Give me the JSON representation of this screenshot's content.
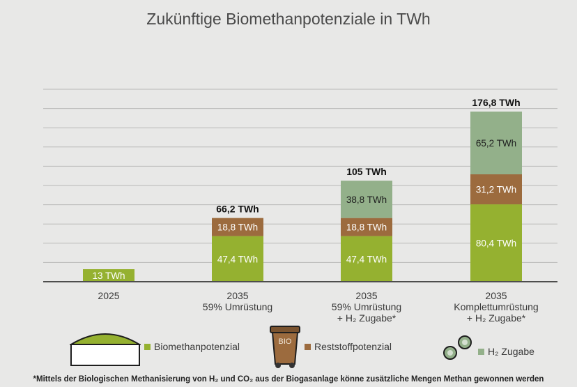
{
  "title": "Zukünftige Biomethanpotenziale in TWh",
  "chart_data": {
    "type": "bar",
    "stacked": true,
    "categories": [
      {
        "line1": "2025",
        "line2": "",
        "line3": ""
      },
      {
        "line1": "2035",
        "line2": "59% Umrüstung",
        "line3": ""
      },
      {
        "line1": "2035",
        "line2": "59% Umrüstung",
        "line3": "+ H₂ Zugabe*"
      },
      {
        "line1": "2035",
        "line2": "Komplettumrüstung",
        "line3": "+ H₂ Zugabe*"
      }
    ],
    "series": [
      {
        "name": "Biomethanpotenzial",
        "color": "#95b130",
        "values": [
          13,
          47.4,
          47.4,
          80.4
        ],
        "labels": [
          "13 TWh",
          "47,4 TWh",
          "47,4 TWh",
          "80,4 TWh"
        ]
      },
      {
        "name": "Reststoffpotenzial",
        "color": "#9c6b3e",
        "values": [
          0,
          18.8,
          18.8,
          31.2
        ],
        "labels": [
          "",
          "18,8 TWh",
          "18,8 TWh",
          "31,2 TWh"
        ]
      },
      {
        "name": "H₂ Zugabe",
        "color": "#93b08a",
        "values": [
          0,
          0,
          38.8,
          65.2
        ],
        "labels": [
          "",
          "",
          "38,8 TWh",
          "65,2 TWh"
        ]
      }
    ],
    "totals": [
      "",
      "66,2 TWh",
      "105 TWh",
      "176,8 TWh"
    ],
    "ylim": [
      0,
      200
    ],
    "grid": true,
    "legend_position": "bottom"
  },
  "legend": {
    "biomethan_label": "Biomethanpotenzial",
    "reststoff_label": "Reststoffpotenzial",
    "h2_label": "H₂ Zugabe",
    "bin_text": "BIO",
    "colors": {
      "biomethan": "#95b130",
      "reststoff": "#9c6b3e",
      "h2": "#93b08a"
    }
  },
  "footnote": "*Mittels der Biologischen Methanisierung von H₂ und CO₂ aus der Biogasanlage könne zusätzliche Mengen Methan gewonnen werden"
}
